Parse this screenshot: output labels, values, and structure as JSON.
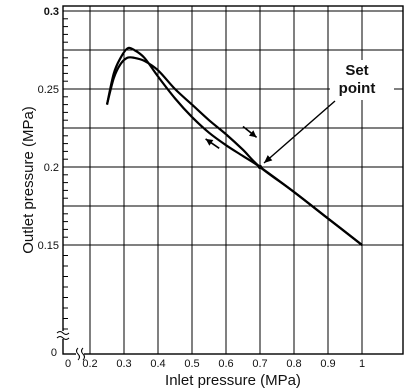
{
  "chart_data": {
    "type": "line",
    "xlabel": "Inlet pressure (MPa)",
    "ylabel": "Outlet pressure (MPa)",
    "xlim": [
      0.2,
      1.0
    ],
    "ylim": [
      0.15,
      0.3
    ],
    "x_ticks": [
      "0.2",
      "0.3",
      "0.4",
      "0.5",
      "0.6",
      "0.7",
      "0.8",
      "0.9",
      "1"
    ],
    "y_ticks": [
      "0.15",
      "0.2",
      "0.25",
      "0.3"
    ],
    "origin_labels": {
      "x": "0",
      "y": "0"
    },
    "axis_break": true,
    "grid": true,
    "series": [
      {
        "x": [
          0.25,
          0.27,
          0.29,
          0.31,
          0.33,
          0.36,
          0.4,
          0.45,
          0.5,
          0.55,
          0.6,
          0.65,
          0.7,
          0.8,
          0.9,
          1.0
        ],
        "y": [
          0.24,
          0.26,
          0.27,
          0.276,
          0.275,
          0.27,
          0.258,
          0.244,
          0.232,
          0.222,
          0.214,
          0.207,
          0.2,
          0.184,
          0.167,
          0.15
        ]
      },
      {
        "x": [
          0.25,
          0.27,
          0.29,
          0.31,
          0.33,
          0.36,
          0.4,
          0.45,
          0.5,
          0.55,
          0.6,
          0.65,
          0.7,
          0.8,
          0.9,
          1.0
        ],
        "y": [
          0.24,
          0.257,
          0.266,
          0.27,
          0.27,
          0.268,
          0.262,
          0.25,
          0.24,
          0.23,
          0.221,
          0.211,
          0.2,
          0.184,
          0.167,
          0.15
        ]
      }
    ],
    "arrows": [
      {
        "from": [
          0.65,
          0.226
        ],
        "to": [
          0.69,
          0.219
        ]
      },
      {
        "from": [
          0.58,
          0.212
        ],
        "to": [
          0.54,
          0.218
        ]
      }
    ],
    "annotation": {
      "text": [
        "Set",
        "point"
      ],
      "point": [
        0.7,
        0.2
      ]
    }
  }
}
